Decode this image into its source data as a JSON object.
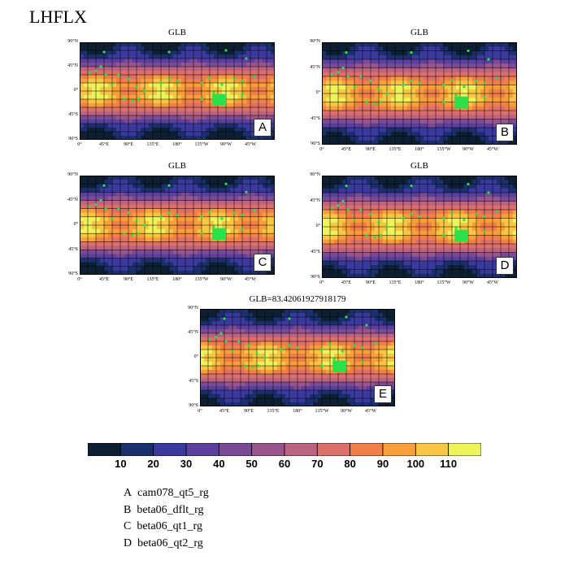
{
  "figure": {
    "title": "LHFLX",
    "panels": [
      {
        "id": "A",
        "title": "GLB"
      },
      {
        "id": "B",
        "title": "GLB"
      },
      {
        "id": "C",
        "title": "GLB"
      },
      {
        "id": "D",
        "title": "GLB"
      },
      {
        "id": "E",
        "title": "GLB=83.42061927918179"
      }
    ],
    "lat_ticks": [
      "90°N",
      "45°N",
      "0°",
      "45°S",
      "90°S"
    ],
    "lon_ticks": [
      "0°",
      "45°E",
      "90°E",
      "135°E",
      "180°",
      "135°W",
      "90°W",
      "45°W"
    ],
    "legend": [
      {
        "letter": "A",
        "name": "cam078_qt5_rg"
      },
      {
        "letter": "B",
        "name": "beta06_dflt_rg"
      },
      {
        "letter": "C",
        "name": "beta06_qt1_rg"
      },
      {
        "letter": "D",
        "name": "beta06_qt2_rg"
      }
    ]
  },
  "chart_data": {
    "type": "heatmap",
    "variable": "LHFLX",
    "global_mean_E": 83.42061927918179,
    "colorbar": {
      "levels": [
        10,
        20,
        30,
        40,
        50,
        60,
        70,
        80,
        90,
        100,
        110
      ],
      "level_labels": [
        "10",
        "20",
        "30",
        "40",
        "50",
        "60",
        "70",
        "80",
        "90",
        "100",
        "110"
      ],
      "colors": [
        "#0d1f33",
        "#1a2f6b",
        "#3a3a9e",
        "#5b3f9e",
        "#7a4a96",
        "#9a568c",
        "#bd6382",
        "#dd6f6a",
        "#f07f4a",
        "#f89f3a",
        "#f7c744",
        "#eef35a"
      ]
    },
    "lat_range": [
      -90,
      90
    ],
    "lon_range": [
      0,
      360
    ]
  }
}
